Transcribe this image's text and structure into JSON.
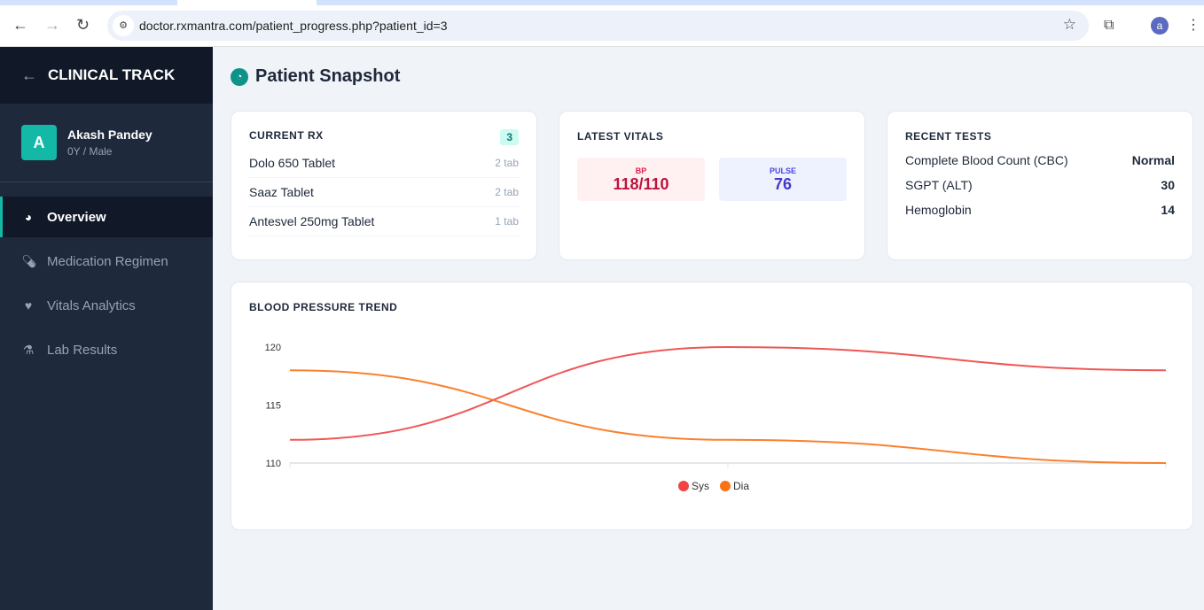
{
  "browser": {
    "url": "doctor.rxmantra.com/patient_progress.php?patient_id=3",
    "profile_initial": "a"
  },
  "sidebar": {
    "title": "CLINICAL TRACK",
    "user": {
      "initial": "A",
      "name": "Akash Pandey",
      "meta": "0Y / Male"
    },
    "items": [
      {
        "label": "Overview",
        "icon": "pie-chart-icon",
        "active": true
      },
      {
        "label": "Medication Regimen",
        "icon": "pills-icon"
      },
      {
        "label": "Vitals Analytics",
        "icon": "heart-pulse-icon"
      },
      {
        "label": "Lab Results",
        "icon": "flask-icon"
      }
    ]
  },
  "page": {
    "title": "Patient Snapshot"
  },
  "rx": {
    "header": "CURRENT RX",
    "count": "3",
    "items": [
      {
        "name": "Dolo 650 Tablet",
        "qty": "2 tab"
      },
      {
        "name": "Saaz Tablet",
        "qty": "2 tab"
      },
      {
        "name": "Antesvel 250mg Tablet",
        "qty": "1 tab"
      }
    ]
  },
  "vitals": {
    "header": "LATEST VITALS",
    "bp_label": "BP",
    "bp": "118/110",
    "pulse_label": "PULSE",
    "pulse": "76"
  },
  "tests": {
    "header": "RECENT TESTS",
    "items": [
      {
        "name": "Complete Blood Count (CBC)",
        "value": "Normal"
      },
      {
        "name": "SGPT (ALT)",
        "value": "30"
      },
      {
        "name": "Hemoglobin",
        "value": "14"
      }
    ]
  },
  "chart_data": {
    "type": "line",
    "title": "BLOOD PRESSURE TREND",
    "ylim": [
      110,
      120
    ],
    "yticks": [
      "110",
      "115",
      "120"
    ],
    "x": [
      1,
      2,
      3
    ],
    "series": [
      {
        "name": "Sys",
        "values": [
          112,
          120,
          118
        ],
        "color": "#ef4444"
      },
      {
        "name": "Dia",
        "values": [
          118,
          112,
          110
        ],
        "color": "#f97316"
      }
    ],
    "legend": "bottom"
  }
}
